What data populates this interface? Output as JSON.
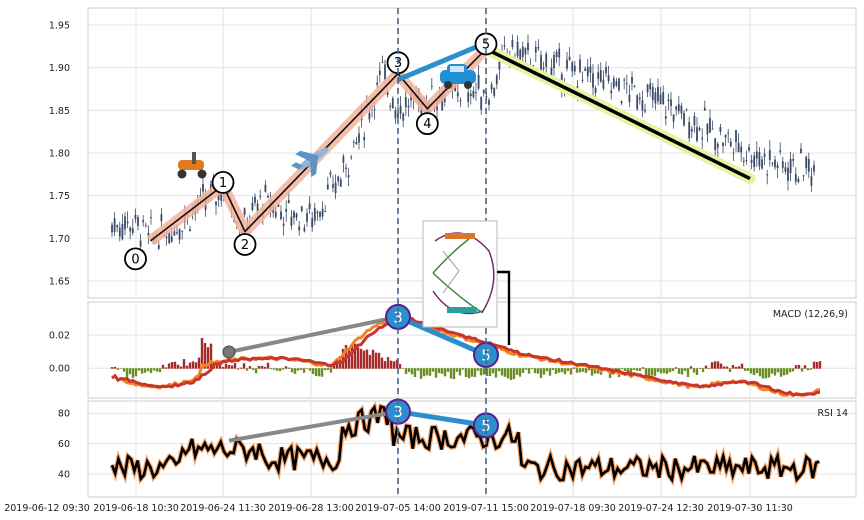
{
  "chart_data": {
    "type": "line",
    "subtype": "candlestick with wave annotations and MACD / RSI panels",
    "panels": [
      {
        "id": "price",
        "y_ticks": [
          "1.65",
          "1.70",
          "1.75",
          "1.80",
          "1.85",
          "1.90",
          "1.95"
        ],
        "ylim": [
          1.63,
          1.97
        ],
        "grid": true,
        "wave_points": [
          {
            "label": "0",
            "date": "2019-06-19",
            "value": 1.697
          },
          {
            "label": "1",
            "date": "2019-06-24",
            "value": 1.762
          },
          {
            "label": "2",
            "date": "2019-06-25",
            "value": 1.708
          },
          {
            "label": "3",
            "date": "2019-07-05",
            "value": 1.893
          },
          {
            "label": "4",
            "date": "2019-07-07",
            "value": 1.852
          },
          {
            "label": "5",
            "date": "2019-07-11",
            "value": 1.922
          }
        ],
        "trend_end": {
          "date": "2019-07-30",
          "value": 1.77
        },
        "icons": [
          "scooter-icon",
          "airplane-icon",
          "car-icon",
          "roller-coaster-icon"
        ]
      },
      {
        "id": "macd",
        "legend": "MACD (12,26,9)",
        "y_ticks": [
          "0.00",
          "0.02"
        ],
        "ylim": [
          -0.018,
          0.04
        ],
        "grid": true,
        "markers": [
          {
            "label": "3",
            "date": "2019-07-05",
            "value": 0.031
          },
          {
            "label": "5",
            "date": "2019-07-11",
            "value": 0.008
          }
        ]
      },
      {
        "id": "rsi",
        "legend": "RSI 14",
        "y_ticks": [
          "40",
          "60",
          "80"
        ],
        "ylim": [
          25,
          88
        ],
        "grid": true,
        "markers": [
          {
            "label": "3",
            "date": "2019-07-05",
            "value": 81
          },
          {
            "label": "5",
            "date": "2019-07-11",
            "value": 72
          }
        ]
      }
    ],
    "x_ticks": [
      "2019-06-12 09:30",
      "2019-06-18 10:30",
      "2019-06-24 11:30",
      "2019-06-28 13:00",
      "2019-07-05 14:00",
      "2019-07-11 15:00",
      "2019-07-18 09:30",
      "2019-07-24 12:30",
      "2019-07-30 11:30"
    ],
    "series_colors": {
      "candle": "#3b4a66",
      "wave_bg": "#f4b29a",
      "wave_line": "#111111",
      "trend_bg": "#e6f3a3",
      "trend_line": "#000000",
      "blue": "#2b8fce",
      "gray": "#888888",
      "macd": "#f58220",
      "signal": "#c9342f",
      "hist_pos": "#a52a2a",
      "hist_neg": "#6b8e23",
      "rsi_line": "#000000",
      "rsi_halo": "#f5a46b",
      "vline": "#4a6483"
    }
  }
}
